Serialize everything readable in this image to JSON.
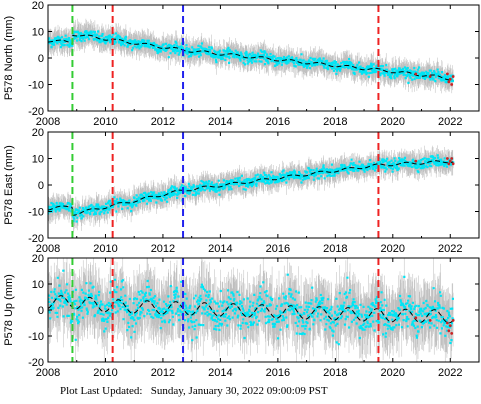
{
  "footer": {
    "label": "Plot Last Updated:",
    "timestamp": "Sunday, January 30, 2022 09:00:09 PST"
  },
  "colors": {
    "error_bars": "#bbbbbb",
    "data_points": "#00e5f5",
    "outliers": "#cc2222",
    "model": "#000000",
    "line_green": "#33cc33",
    "line_red": "#ee2222",
    "line_blue": "#2222ee"
  },
  "chart_data": [
    {
      "type": "scatter",
      "ylabel": "P578 North (mm)",
      "xlim": [
        2008,
        2023
      ],
      "ylim": [
        -20,
        20
      ],
      "x_ticks": [
        2008,
        2010,
        2012,
        2014,
        2016,
        2018,
        2020,
        2022
      ],
      "y_ticks": [
        -20,
        -10,
        0,
        10,
        20
      ],
      "trend_points": [
        [
          2008.0,
          6.5
        ],
        [
          2008.85,
          6.0
        ],
        [
          2008.86,
          9.0
        ],
        [
          2012.7,
          3.0
        ],
        [
          2019.5,
          -4.5
        ],
        [
          2021.5,
          -7.0
        ],
        [
          2022.1,
          -8.0
        ]
      ],
      "seasonal_amplitude": 0.5,
      "scatter_sd": 1.0,
      "error_bar": 3.5,
      "vertical_lines": [
        {
          "x": 2008.85,
          "color": "green"
        },
        {
          "x": 2010.25,
          "color": "red"
        },
        {
          "x": 2012.7,
          "color": "blue"
        },
        {
          "x": 2019.5,
          "color": "red"
        }
      ],
      "outliers": [
        [
          2020.8,
          -6
        ],
        [
          2021.3,
          -7
        ],
        [
          2021.9,
          -6
        ],
        [
          2021.95,
          -9
        ],
        [
          2022.0,
          -8
        ],
        [
          2022.05,
          -10
        ],
        [
          2022.1,
          -7
        ]
      ]
    },
    {
      "type": "scatter",
      "ylabel": "P578 East (mm)",
      "xlim": [
        2008,
        2023
      ],
      "ylim": [
        -20,
        20
      ],
      "x_ticks": [
        2008,
        2010,
        2012,
        2014,
        2016,
        2018,
        2020,
        2022
      ],
      "y_ticks": [
        -20,
        -10,
        0,
        10,
        20
      ],
      "trend_points": [
        [
          2008.0,
          -9.0
        ],
        [
          2008.85,
          -8.0
        ],
        [
          2008.86,
          -11.0
        ],
        [
          2012.7,
          -2.0
        ],
        [
          2019.5,
          7.5
        ],
        [
          2022.1,
          9.0
        ]
      ],
      "seasonal_amplitude": 0.5,
      "scatter_sd": 1.0,
      "error_bar": 3.5,
      "vertical_lines": [
        {
          "x": 2008.85,
          "color": "green"
        },
        {
          "x": 2010.25,
          "color": "red"
        },
        {
          "x": 2012.7,
          "color": "blue"
        },
        {
          "x": 2019.5,
          "color": "red"
        }
      ],
      "outliers": [
        [
          2020.8,
          9
        ],
        [
          2021.9,
          10
        ],
        [
          2021.95,
          8
        ],
        [
          2022.0,
          9
        ],
        [
          2022.05,
          10
        ],
        [
          2022.1,
          8
        ]
      ]
    },
    {
      "type": "scatter",
      "ylabel": "P578 Up (mm)",
      "xlim": [
        2008,
        2023
      ],
      "ylim": [
        -20,
        20
      ],
      "x_ticks": [
        2008,
        2010,
        2012,
        2014,
        2016,
        2018,
        2020,
        2022
      ],
      "y_ticks": [
        -20,
        -10,
        0,
        10,
        20
      ],
      "trend_points": [
        [
          2008.0,
          3.0
        ],
        [
          2008.85,
          3.0
        ],
        [
          2010.25,
          1.5
        ],
        [
          2019.5,
          -2.0
        ],
        [
          2022.1,
          -2.5
        ]
      ],
      "seasonal_amplitude": 2.5,
      "scatter_sd": 3.5,
      "error_bar": 9.0,
      "vertical_lines": [
        {
          "x": 2008.85,
          "color": "green"
        },
        {
          "x": 2010.25,
          "color": "red"
        },
        {
          "x": 2012.7,
          "color": "blue"
        },
        {
          "x": 2019.5,
          "color": "red"
        }
      ],
      "outliers": [
        [
          2020.8,
          -3
        ],
        [
          2021.3,
          -4
        ],
        [
          2021.9,
          -5
        ],
        [
          2021.95,
          -8
        ],
        [
          2022.0,
          -6
        ],
        [
          2022.05,
          -9
        ],
        [
          2022.1,
          -4
        ]
      ]
    }
  ]
}
